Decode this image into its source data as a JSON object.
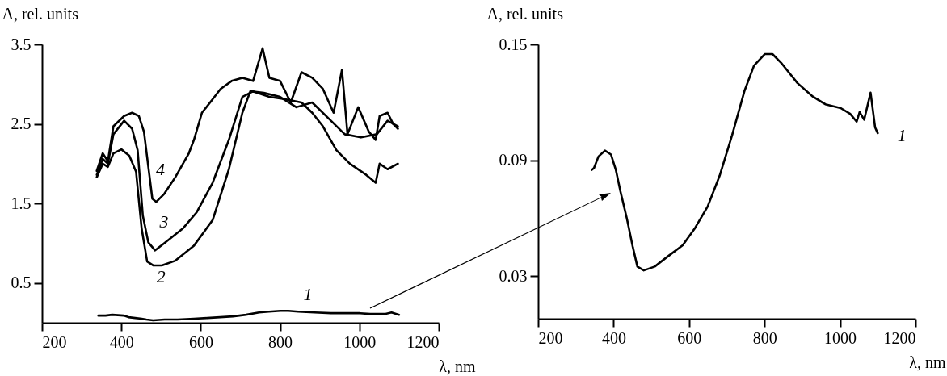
{
  "chart_data": [
    {
      "type": "line",
      "xlabel": "λ, nm",
      "ylabel": "A, rel. units",
      "xlim": [
        200,
        1200
      ],
      "xticks": [
        200,
        400,
        600,
        800,
        1000,
        1200
      ],
      "ylim": [
        0,
        3.5
      ],
      "yticks": [
        0.5,
        1.5,
        2.5,
        3.5
      ],
      "series": [
        {
          "name": "4",
          "color": "#000000",
          "x": [
            338,
            353,
            366,
            380,
            407,
            427,
            444,
            457,
            468,
            478,
            488,
            508,
            536,
            570,
            583,
            603,
            630,
            650,
            678,
            705,
            732,
            756,
            773,
            800,
            827,
            854,
            881,
            908,
            935,
            956,
            970,
            997,
            1024,
            1041,
            1051,
            1071,
            1085,
            1097
          ],
          "values": [
            1.91,
            2.13,
            2.03,
            2.47,
            2.6,
            2.64,
            2.6,
            2.4,
            1.96,
            1.56,
            1.52,
            1.62,
            1.83,
            2.13,
            2.3,
            2.64,
            2.81,
            2.94,
            3.04,
            3.08,
            3.04,
            3.45,
            3.08,
            3.04,
            2.77,
            3.15,
            3.08,
            2.94,
            2.64,
            3.18,
            2.37,
            2.71,
            2.4,
            2.3,
            2.6,
            2.64,
            2.5,
            2.44
          ]
        },
        {
          "name": "3",
          "color": "#000000",
          "x": [
            338,
            353,
            366,
            380,
            407,
            427,
            441,
            454,
            468,
            485,
            508,
            556,
            590,
            630,
            671,
            705,
            732,
            773,
            813,
            854,
            881,
            908,
            942,
            976,
            1017,
            1041,
            1051,
            1071,
            1097
          ],
          "values": [
            1.86,
            2.06,
            2.0,
            2.37,
            2.54,
            2.44,
            2.17,
            1.35,
            1.01,
            0.91,
            1.0,
            1.19,
            1.39,
            1.76,
            2.3,
            2.84,
            2.91,
            2.84,
            2.81,
            2.77,
            2.64,
            2.47,
            2.17,
            2.0,
            1.86,
            1.76,
            2.0,
            1.93,
            2.0
          ]
        },
        {
          "name": "2",
          "color": "#000000",
          "x": [
            338,
            353,
            366,
            380,
            400,
            420,
            437,
            451,
            465,
            481,
            502,
            536,
            583,
            630,
            671,
            705,
            725,
            759,
            800,
            841,
            881,
            922,
            963,
            1004,
            1044,
            1071,
            1097
          ],
          "values": [
            1.83,
            2.0,
            1.96,
            2.13,
            2.18,
            2.1,
            1.9,
            1.19,
            0.77,
            0.72,
            0.72,
            0.78,
            0.97,
            1.29,
            1.93,
            2.64,
            2.91,
            2.89,
            2.84,
            2.71,
            2.77,
            2.57,
            2.37,
            2.33,
            2.37,
            2.54,
            2.47
          ]
        },
        {
          "name": "1",
          "color": "#000000",
          "x": [
            342,
            360,
            377,
            406,
            418,
            435,
            451,
            463,
            480,
            509,
            542,
            583,
            616,
            649,
            681,
            714,
            747,
            772,
            801,
            821,
            846,
            887,
            928,
            961,
            1002,
            1027,
            1044,
            1064,
            1081,
            1100
          ],
          "values": [
            0.09,
            0.09,
            0.1,
            0.09,
            0.07,
            0.06,
            0.05,
            0.04,
            0.03,
            0.04,
            0.04,
            0.05,
            0.06,
            0.07,
            0.08,
            0.1,
            0.13,
            0.14,
            0.15,
            0.15,
            0.14,
            0.13,
            0.12,
            0.12,
            0.12,
            0.11,
            0.11,
            0.11,
            0.13,
            0.1
          ]
        }
      ]
    },
    {
      "type": "line",
      "xlabel": "λ, nm",
      "ylabel": "A, rel. units",
      "xlim": [
        200,
        1200
      ],
      "xticks": [
        200,
        400,
        600,
        800,
        1000,
        1200
      ],
      "ylim": [
        0.008,
        0.15
      ],
      "yticks": [
        0.03,
        0.09,
        0.15
      ],
      "series": [
        {
          "name": "1",
          "color": "#000000",
          "x": [
            342,
            348,
            360,
            377,
            393,
            406,
            418,
            435,
            451,
            463,
            480,
            509,
            542,
            583,
            616,
            649,
            681,
            714,
            747,
            772,
            801,
            821,
            846,
            887,
            928,
            961,
            1002,
            1027,
            1044,
            1052,
            1064,
            1081,
            1093,
            1100
          ],
          "values": [
            0.085,
            0.086,
            0.092,
            0.095,
            0.093,
            0.085,
            0.074,
            0.06,
            0.045,
            0.035,
            0.033,
            0.035,
            0.04,
            0.046,
            0.055,
            0.066,
            0.082,
            0.103,
            0.126,
            0.139,
            0.145,
            0.145,
            0.14,
            0.13,
            0.123,
            0.119,
            0.117,
            0.114,
            0.11,
            0.115,
            0.111,
            0.125,
            0.107,
            0.104
          ]
        }
      ]
    }
  ]
}
